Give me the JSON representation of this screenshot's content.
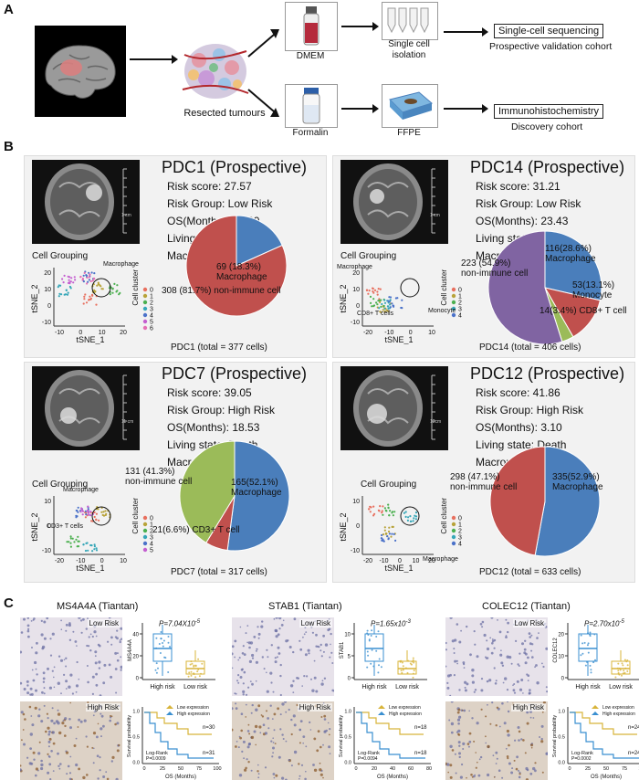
{
  "panel_labels": {
    "a": "A",
    "b": "B",
    "c": "C"
  },
  "workflow": {
    "resected": "Resected tumours",
    "dmem": "DMEM",
    "formalin": "Formalin",
    "isolation": "Single cell\nisolation",
    "ffpe": "FFPE",
    "scseq": "Single-cell sequencing",
    "scseq_sub": "Prospective validation cohort",
    "ihc": "Immunohistochemistry",
    "ihc_sub": "Discovery cohort"
  },
  "patients": [
    {
      "title": "PDC1 (Prospective)",
      "stats": [
        "Risk score: 27.57",
        "Risk Group: Low Risk",
        "OS(Months): 40.60",
        "Living state: Living",
        "Macrophage: 18.3%"
      ],
      "cell_grouping": "Cell Grouping",
      "total": "PDC1 (total = 377 cells)",
      "scale": "1 cm",
      "tsne_x": "tSNE_1",
      "tsne_y": "tSNE_2",
      "tsne_annotations": [
        "Macrophage"
      ],
      "ticks_x": [
        "-10",
        "0",
        "10",
        "20"
      ],
      "ticks_y": [
        "20",
        "10",
        "0",
        "-10"
      ],
      "cluster_title": "Cell\ncluster",
      "clusters": [
        "0",
        "1",
        "2",
        "3",
        "4",
        "5",
        "6"
      ],
      "pie_labels": [
        "69 (18.3%)\nMacrophage",
        "308 (81.7%) non-immune cell"
      ],
      "chart": {
        "type": "pie",
        "slices": [
          {
            "label": "Macrophage",
            "count": 69,
            "percent": 18.3,
            "color": "#4a7ebb"
          },
          {
            "label": "non-immune cell",
            "count": 308,
            "percent": 81.7,
            "color": "#c0504d"
          }
        ]
      }
    },
    {
      "title": "PDC14 (Prospective)",
      "stats": [
        "Risk score: 31.21",
        "Risk Group: Low Risk",
        "OS(Months): 23.43",
        "Living state: Living",
        "Macrophage: 28.6%"
      ],
      "cell_grouping": "Cell Grouping",
      "total": "PDC14 (total = 406 cells)",
      "scale": "1 cm",
      "tsne_x": "tSNE_1",
      "tsne_y": "tSNE_2",
      "tsne_annotations": [
        "Macrophage",
        "CD8+ T cells",
        "Monocyte"
      ],
      "ticks_x": [
        "-20",
        "-10",
        "0",
        "10"
      ],
      "ticks_y": [
        "20",
        "10",
        "0",
        "-10"
      ],
      "cluster_title": "Cell\ncluster",
      "clusters": [
        "0",
        "1",
        "2",
        "3",
        "4"
      ],
      "pie_labels": [
        "116(28.6%)\nMacrophage",
        "53(13.1%)\nMonocyte",
        "14(3.4%) CD8+ T cell",
        "223 (54.9%)\nnon-immune cell"
      ],
      "chart": {
        "type": "pie",
        "slices": [
          {
            "label": "Macrophage",
            "count": 116,
            "percent": 28.6,
            "color": "#4a7ebb"
          },
          {
            "label": "Monocyte",
            "count": 53,
            "percent": 13.1,
            "color": "#c0504d"
          },
          {
            "label": "CD8+ T cell",
            "count": 14,
            "percent": 3.4,
            "color": "#9bbb59"
          },
          {
            "label": "non-immune cell",
            "count": 223,
            "percent": 54.9,
            "color": "#8064a2"
          }
        ]
      }
    },
    {
      "title": "PDC7 (Prospective)",
      "stats": [
        "Risk score: 39.05",
        "Risk Group: High Risk",
        "OS(Months): 18.53",
        "Living state: Death",
        "Macrophage: 52.1%"
      ],
      "cell_grouping": "Cell Grouping",
      "total": "PDC7 (total = 317 cells)",
      "scale": "11 cm",
      "tsne_x": "tSNE_1",
      "tsne_y": "tSNE_2",
      "tsne_annotations": [
        "Macrophage",
        "CD3+ T cells"
      ],
      "ticks_x": [
        "-20",
        "-10",
        "0",
        "10"
      ],
      "ticks_y": [
        "10",
        "0",
        "-10"
      ],
      "cluster_title": "Cell\ncluster",
      "clusters": [
        "0",
        "1",
        "2",
        "3",
        "4",
        "5"
      ],
      "pie_labels": [
        "165(52.1%)\nMacrophage",
        "21(6.6%) CD3+ T cell",
        "131 (41.3%)\nnon-immune cell"
      ],
      "chart": {
        "type": "pie",
        "slices": [
          {
            "label": "Macrophage",
            "count": 165,
            "percent": 52.1,
            "color": "#4a7ebb"
          },
          {
            "label": "CD3+ T cell",
            "count": 21,
            "percent": 6.6,
            "color": "#c0504d"
          },
          {
            "label": "non-immune cell",
            "count": 131,
            "percent": 41.3,
            "color": "#9bbb59"
          }
        ]
      }
    },
    {
      "title": "PDC12 (Prospective)",
      "stats": [
        "Risk score: 41.86",
        "Risk Group: High Risk",
        "OS(Months): 3.10",
        "Living state: Death",
        "Macrophage(%): 52.9"
      ],
      "cell_grouping": "Cell Grouping",
      "total": "PDC12 (total = 633 cells)",
      "scale": "12cm",
      "tsne_x": "tSNE_1",
      "tsne_y": "tSNE_2",
      "tsne_annotations": [
        "Macrophage"
      ],
      "ticks_x": [
        "-20",
        "-10",
        "0",
        "10",
        "20"
      ],
      "ticks_y": [
        "10",
        "0",
        "-10"
      ],
      "cluster_title": "Cell\ncluster",
      "clusters": [
        "0",
        "1",
        "2",
        "3",
        "4"
      ],
      "pie_labels": [
        "335(52.9%)\nMacrophage",
        "298 (47.1%)\nnon-immune cell"
      ],
      "chart": {
        "type": "pie",
        "slices": [
          {
            "label": "Macrophage",
            "count": 335,
            "percent": 52.9,
            "color": "#4a7ebb"
          },
          {
            "label": "non-immune cell",
            "count": 298,
            "percent": 47.1,
            "color": "#c0504d"
          }
        ]
      }
    }
  ],
  "ihc": [
    {
      "title": "MS4A4A (Tiantan)",
      "gene": "MS4A4A",
      "low_tag": "Low Risk",
      "high_tag": "High Risk",
      "p_value": "P=7.04X10",
      "p_exp": "-5",
      "xcats": [
        "High risk",
        "Low risk"
      ],
      "legend": [
        "Low expression",
        "High expression"
      ],
      "n_high": "n=30",
      "n_low": "n=31",
      "logrank": "Log-Rank\nP=0.0009",
      "xaxis": "OS (Months)",
      "yaxis": "Survival probability",
      "box_ticks": [
        "0",
        "20",
        "40"
      ],
      "km_xticks": [
        "0",
        "25",
        "50",
        "75",
        "100"
      ],
      "km_yticks": [
        "0.0",
        "0.5",
        "1.0"
      ]
    },
    {
      "title": "STAB1 (Tiantan)",
      "gene": "STAB1",
      "low_tag": "Low Risk",
      "high_tag": "High Risk",
      "p_value": "P=1.65x10",
      "p_exp": "-3",
      "xcats": [
        "High risk",
        "Low risk"
      ],
      "legend": [
        "Low expression",
        "High expression"
      ],
      "n_high": "n=18",
      "n_low": "n=18",
      "logrank": "Log-Rank\nP=0.0094",
      "xaxis": "OS (Months)",
      "yaxis": "Survival probability",
      "box_ticks": [
        "0",
        "5",
        "10"
      ],
      "km_xticks": [
        "0",
        "20",
        "40",
        "60",
        "80"
      ],
      "km_yticks": [
        "0.0",
        "0.5",
        "1.0"
      ]
    },
    {
      "title": "COLEC12 (Tiantan)",
      "gene": "COLEC12",
      "low_tag": "Low Risk",
      "high_tag": "High Risk",
      "p_value": "P=2.70x10",
      "p_exp": "-5",
      "xcats": [
        "High risk",
        "Low risk"
      ],
      "legend": [
        "Low expression",
        "High expression"
      ],
      "n_high": "n=24",
      "n_low": "n=24",
      "logrank": "Log-Rank\nP=0.0002",
      "xaxis": "OS (Months)",
      "yaxis": "Survival probability",
      "box_ticks": [
        "0",
        "10",
        "20"
      ],
      "km_xticks": [
        "0",
        "25",
        "50",
        "75",
        "100"
      ],
      "km_yticks": [
        "0.0",
        "0.5",
        "1.0"
      ]
    }
  ]
}
